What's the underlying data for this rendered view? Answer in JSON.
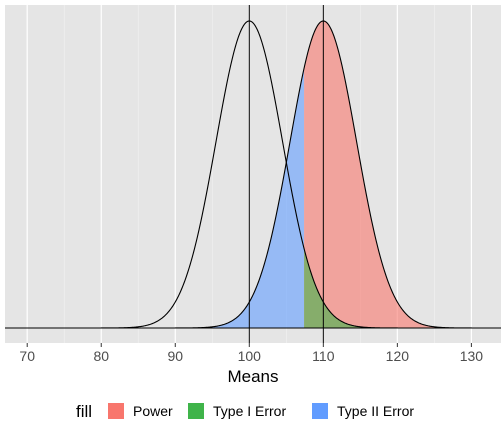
{
  "chart_data": {
    "type": "area",
    "title": "",
    "xlabel": "Means",
    "ylabel": "",
    "xlim": [
      67,
      134
    ],
    "x_ticks": [
      70,
      80,
      90,
      100,
      110,
      120,
      130
    ],
    "grid": true,
    "legend_position": "bottom",
    "legend_title": "fill",
    "distributions": [
      {
        "role": "null",
        "mean": 100,
        "sd": 4.5
      },
      {
        "role": "alternative",
        "mean": 110,
        "sd": 4.5
      }
    ],
    "critical_value": 107.4,
    "vertical_lines": [
      100,
      110
    ],
    "series": [
      {
        "name": "Power",
        "color": "#f8766d",
        "region": "alternative curve for x > 107.4"
      },
      {
        "name": "Type I Error",
        "color": "#3fb44a",
        "region": "null curve for x > 107.4"
      },
      {
        "name": "Type II Error",
        "color": "#619cff",
        "region": "alternative curve for x < 107.4"
      }
    ]
  }
}
